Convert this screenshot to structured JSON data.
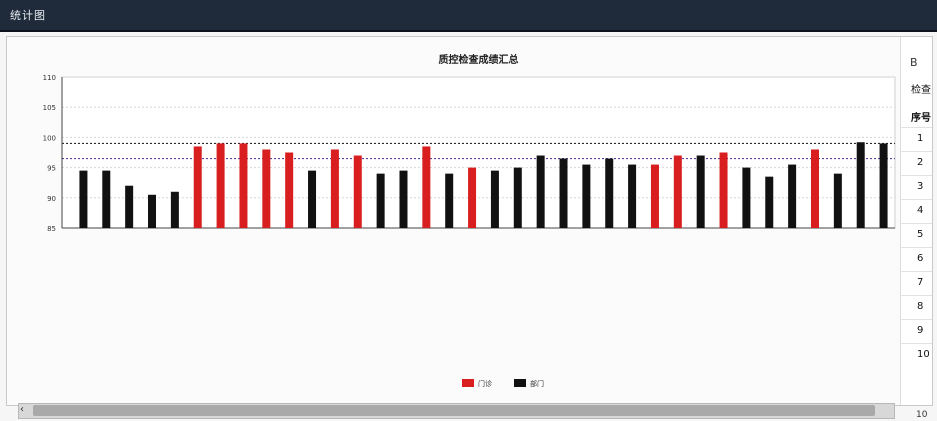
{
  "window": {
    "title": "统计图"
  },
  "chart_data": {
    "type": "bar",
    "title": "质控检查成绩汇总",
    "xlabel": "",
    "ylabel": "",
    "ylim": [
      85,
      110
    ],
    "yticks": [
      85,
      90,
      95,
      100,
      105,
      110
    ],
    "reference_lines": [
      99,
      96.5
    ],
    "legend": {
      "placement": "bottom",
      "items": [
        {
          "name": "门诊",
          "color": "#d81e1e"
        },
        {
          "name": "部门",
          "color": "#111111"
        }
      ]
    },
    "categories": [
      "",
      "",
      "",
      "",
      "",
      "",
      "",
      "",
      "",
      "",
      "",
      "",
      "",
      "",
      "",
      "",
      "",
      "",
      "",
      "",
      "",
      "",
      "",
      "",
      "",
      "",
      "",
      "",
      "",
      "",
      "",
      "",
      "",
      "",
      "",
      ""
    ],
    "values": [
      94.5,
      94.5,
      92,
      90.5,
      91,
      98.5,
      99,
      99,
      98,
      97.5,
      94.5,
      98,
      97,
      94,
      94.5,
      98.5,
      94,
      95,
      94.5,
      95,
      97,
      96.5,
      95.5,
      96.5,
      95.5,
      95.5,
      97,
      97,
      97.5,
      95,
      93.5,
      95.5,
      98,
      94,
      99.2,
      99
    ],
    "series_colors": [
      "#111111",
      "#111111",
      "#111111",
      "#111111",
      "#111111",
      "#d81e1e",
      "#d81e1e",
      "#d81e1e",
      "#d81e1e",
      "#d81e1e",
      "#111111",
      "#d81e1e",
      "#d81e1e",
      "#111111",
      "#111111",
      "#d81e1e",
      "#111111",
      "#d81e1e",
      "#111111",
      "#111111",
      "#111111",
      "#111111",
      "#111111",
      "#111111",
      "#111111",
      "#d81e1e",
      "#d81e1e",
      "#111111",
      "#d81e1e",
      "#111111",
      "#111111",
      "#111111",
      "#d81e1e",
      "#111111",
      "#111111",
      "#111111"
    ],
    "grid": true
  },
  "right_panel": {
    "toolbar_glyph": "B",
    "header": "检查日期",
    "column_header": "序号",
    "rows": [
      "1",
      "2",
      "3",
      "4",
      "5",
      "6",
      "7",
      "8",
      "9",
      "10"
    ]
  },
  "pager": {
    "text": "10"
  }
}
